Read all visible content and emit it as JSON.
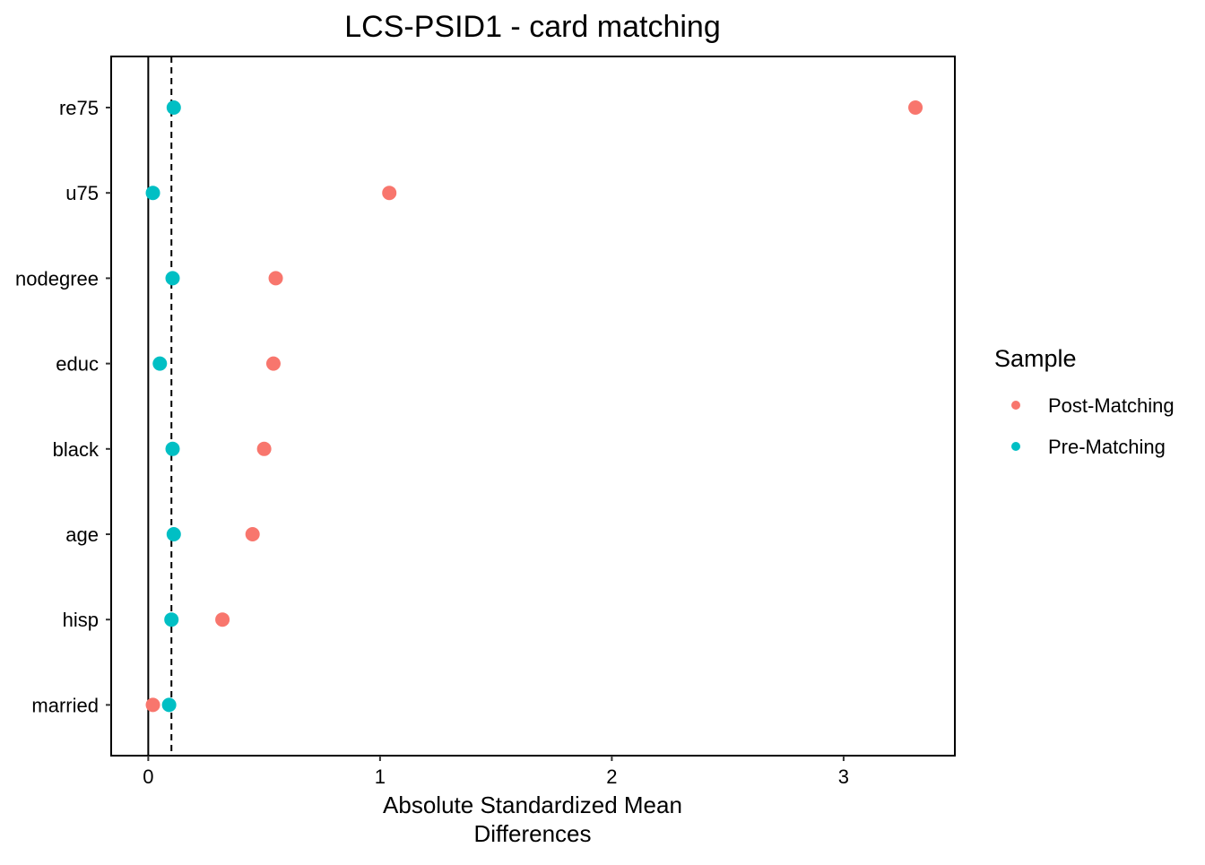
{
  "chart_data": {
    "type": "scatter",
    "title": "LCS-PSID1 - card matching",
    "xlabel_lines": [
      "Absolute Standardized Mean",
      "Differences"
    ],
    "ylabel": "",
    "xlim": [
      -0.16,
      3.48
    ],
    "xticks": [
      0,
      1,
      2,
      3
    ],
    "categories": [
      "re75",
      "u75",
      "nodegree",
      "educ",
      "black",
      "age",
      "hisp",
      "married"
    ],
    "reference_lines": {
      "solid": 0,
      "dashed": 0.1
    },
    "grid": false,
    "legend": {
      "title": "Sample",
      "position": "right"
    },
    "series": [
      {
        "name": "Post-Matching",
        "color": "#F8766D",
        "values": [
          3.31,
          1.04,
          0.55,
          0.54,
          0.5,
          0.45,
          0.32,
          0.02
        ]
      },
      {
        "name": "Pre-Matching",
        "color": "#00BFC4",
        "values": [
          0.11,
          0.02,
          0.105,
          0.05,
          0.105,
          0.11,
          0.1,
          0.09
        ]
      }
    ]
  }
}
